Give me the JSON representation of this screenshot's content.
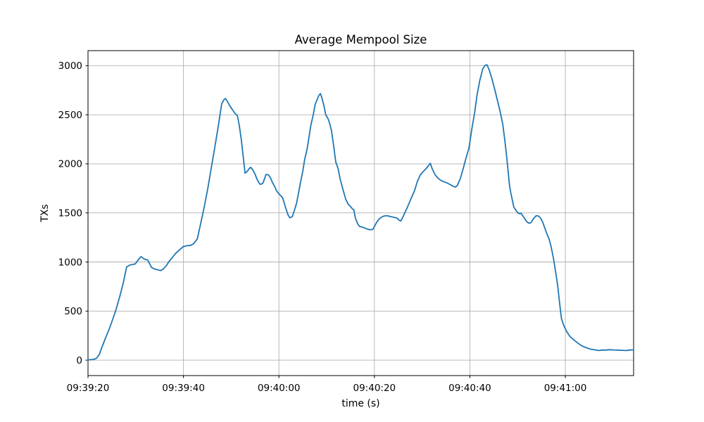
{
  "figure": {
    "background_color": "#ffffff",
    "text_color": "#000000",
    "grid_color": "#b0b0b0"
  },
  "chart_data": {
    "type": "line",
    "title": "Average Mempool Size",
    "xlabel": "time (s)",
    "ylabel": "TXs",
    "grid": true,
    "legend": "none",
    "x_axis": {
      "unit": "seconds after 09:39:20",
      "tick_positions_s": [
        0,
        20,
        40,
        60,
        80,
        100
      ],
      "tick_labels": [
        "09:39:20",
        "09:39:40",
        "09:40:00",
        "09:40:20",
        "09:40:40",
        "09:41:00"
      ]
    },
    "xlim_s": [
      0,
      114.3
    ],
    "ylim": [
      -157,
      3153
    ],
    "yticks": [
      0,
      500,
      1000,
      1500,
      2000,
      2500,
      3000
    ],
    "series": [
      {
        "name": "average mempool size",
        "color": "#1f77b4",
        "points_t_s_txs": [
          [
            0,
            3
          ],
          [
            1.2,
            8
          ],
          [
            1.8,
            20
          ],
          [
            2.4,
            60
          ],
          [
            2.9,
            130
          ],
          [
            3.7,
            230
          ],
          [
            4.4,
            310
          ],
          [
            5.2,
            420
          ],
          [
            5.9,
            520
          ],
          [
            6.6,
            640
          ],
          [
            7.4,
            790
          ],
          [
            8.1,
            950
          ],
          [
            8.8,
            970
          ],
          [
            9.9,
            980
          ],
          [
            10.5,
            1020
          ],
          [
            11.1,
            1055
          ],
          [
            11.8,
            1030
          ],
          [
            12.5,
            1020
          ],
          [
            13.3,
            945
          ],
          [
            14,
            928
          ],
          [
            14.7,
            920
          ],
          [
            15.2,
            912
          ],
          [
            15.8,
            930
          ],
          [
            16.4,
            962
          ],
          [
            17,
            1007
          ],
          [
            17.7,
            1048
          ],
          [
            18.4,
            1090
          ],
          [
            19.2,
            1125
          ],
          [
            19.9,
            1155
          ],
          [
            20.6,
            1165
          ],
          [
            21.5,
            1170
          ],
          [
            22.1,
            1185
          ],
          [
            22.9,
            1235
          ],
          [
            23.6,
            1390
          ],
          [
            24.3,
            1550
          ],
          [
            25.1,
            1750
          ],
          [
            25.8,
            1950
          ],
          [
            26.5,
            2150
          ],
          [
            27.3,
            2385
          ],
          [
            28,
            2610
          ],
          [
            28.5,
            2655
          ],
          [
            28.8,
            2665
          ],
          [
            29.2,
            2635
          ],
          [
            29.6,
            2600
          ],
          [
            30.2,
            2555
          ],
          [
            30.8,
            2515
          ],
          [
            31.3,
            2490
          ],
          [
            31.7,
            2390
          ],
          [
            32.1,
            2250
          ],
          [
            32.6,
            2040
          ],
          [
            32.9,
            1905
          ],
          [
            33.3,
            1920
          ],
          [
            33.8,
            1952
          ],
          [
            34.1,
            1965
          ],
          [
            34.5,
            1940
          ],
          [
            35,
            1895
          ],
          [
            35.4,
            1845
          ],
          [
            35.8,
            1808
          ],
          [
            36.1,
            1790
          ],
          [
            36.6,
            1800
          ],
          [
            37,
            1850
          ],
          [
            37.3,
            1892
          ],
          [
            37.8,
            1888
          ],
          [
            38.2,
            1860
          ],
          [
            38.6,
            1815
          ],
          [
            39.1,
            1770
          ],
          [
            39.5,
            1725
          ],
          [
            40,
            1695
          ],
          [
            40.4,
            1675
          ],
          [
            40.8,
            1652
          ],
          [
            41.3,
            1570
          ],
          [
            41.9,
            1480
          ],
          [
            42.3,
            1450
          ],
          [
            42.8,
            1462
          ],
          [
            43.2,
            1520
          ],
          [
            43.7,
            1600
          ],
          [
            44.1,
            1700
          ],
          [
            44.5,
            1805
          ],
          [
            45,
            1925
          ],
          [
            45.4,
            2045
          ],
          [
            45.9,
            2150
          ],
          [
            46.3,
            2270
          ],
          [
            46.7,
            2395
          ],
          [
            47.2,
            2500
          ],
          [
            47.6,
            2606
          ],
          [
            48.1,
            2665
          ],
          [
            48.4,
            2700
          ],
          [
            48.7,
            2715
          ],
          [
            49.1,
            2655
          ],
          [
            49.4,
            2595
          ],
          [
            49.8,
            2500
          ],
          [
            50.3,
            2458
          ],
          [
            50.6,
            2415
          ],
          [
            51,
            2340
          ],
          [
            51.5,
            2170
          ],
          [
            51.9,
            2020
          ],
          [
            52.4,
            1950
          ],
          [
            52.8,
            1850
          ],
          [
            53.4,
            1740
          ],
          [
            54,
            1640
          ],
          [
            54.5,
            1590
          ],
          [
            55,
            1565
          ],
          [
            55.4,
            1540
          ],
          [
            55.7,
            1530
          ],
          [
            56,
            1450
          ],
          [
            56.5,
            1390
          ],
          [
            56.9,
            1362
          ],
          [
            57.5,
            1355
          ],
          [
            58.1,
            1343
          ],
          [
            58.7,
            1332
          ],
          [
            59.3,
            1328
          ],
          [
            59.7,
            1335
          ],
          [
            60.2,
            1380
          ],
          [
            60.6,
            1415
          ],
          [
            61.2,
            1448
          ],
          [
            61.8,
            1465
          ],
          [
            62.4,
            1472
          ],
          [
            63,
            1468
          ],
          [
            63.6,
            1460
          ],
          [
            64.1,
            1455
          ],
          [
            64.7,
            1448
          ],
          [
            65.2,
            1425
          ],
          [
            65.5,
            1417
          ],
          [
            65.9,
            1450
          ],
          [
            66.4,
            1505
          ],
          [
            66.8,
            1545
          ],
          [
            67.2,
            1590
          ],
          [
            67.8,
            1660
          ],
          [
            68.4,
            1725
          ],
          [
            69,
            1820
          ],
          [
            69.6,
            1885
          ],
          [
            70.2,
            1920
          ],
          [
            70.8,
            1950
          ],
          [
            71.4,
            1985
          ],
          [
            71.7,
            2005
          ],
          [
            72.1,
            1950
          ],
          [
            72.7,
            1890
          ],
          [
            73.3,
            1855
          ],
          [
            73.9,
            1832
          ],
          [
            74.5,
            1818
          ],
          [
            75.2,
            1806
          ],
          [
            75.9,
            1788
          ],
          [
            76.5,
            1772
          ],
          [
            77,
            1763
          ],
          [
            77.4,
            1782
          ],
          [
            78,
            1850
          ],
          [
            78.6,
            1950
          ],
          [
            79.2,
            2060
          ],
          [
            79.8,
            2160
          ],
          [
            80.4,
            2350
          ],
          [
            81,
            2520
          ],
          [
            81.5,
            2700
          ],
          [
            82.1,
            2855
          ],
          [
            82.7,
            2965
          ],
          [
            83.2,
            3005
          ],
          [
            83.6,
            3008
          ],
          [
            84.1,
            2950
          ],
          [
            84.6,
            2870
          ],
          [
            85.2,
            2760
          ],
          [
            85.8,
            2640
          ],
          [
            86.4,
            2520
          ],
          [
            86.9,
            2400
          ],
          [
            87.3,
            2250
          ],
          [
            87.7,
            2080
          ],
          [
            88,
            1930
          ],
          [
            88.3,
            1780
          ],
          [
            88.6,
            1700
          ],
          [
            89.2,
            1560
          ],
          [
            89.8,
            1515
          ],
          [
            90.3,
            1492
          ],
          [
            90.7,
            1498
          ],
          [
            91.3,
            1455
          ],
          [
            91.9,
            1412
          ],
          [
            92.3,
            1396
          ],
          [
            92.8,
            1400
          ],
          [
            93.3,
            1440
          ],
          [
            93.9,
            1472
          ],
          [
            94.4,
            1468
          ],
          [
            94.8,
            1448
          ],
          [
            95.3,
            1400
          ],
          [
            95.7,
            1345
          ],
          [
            96.1,
            1292
          ],
          [
            96.6,
            1233
          ],
          [
            97,
            1160
          ],
          [
            97.5,
            1040
          ],
          [
            97.9,
            920
          ],
          [
            98.4,
            760
          ],
          [
            98.8,
            580
          ],
          [
            99.2,
            420
          ],
          [
            99.7,
            349
          ],
          [
            100.3,
            290
          ],
          [
            101,
            240
          ],
          [
            101.8,
            206
          ],
          [
            102.5,
            178
          ],
          [
            103.2,
            153
          ],
          [
            104,
            134
          ],
          [
            104.7,
            122
          ],
          [
            105.4,
            111
          ],
          [
            106.2,
            105
          ],
          [
            106.9,
            98
          ],
          [
            107.7,
            103
          ],
          [
            108.4,
            102
          ],
          [
            109.3,
            107
          ],
          [
            110.2,
            104
          ],
          [
            111,
            102
          ],
          [
            111.9,
            100
          ],
          [
            112.8,
            98
          ],
          [
            113.5,
            103
          ],
          [
            114.3,
            105
          ]
        ]
      }
    ]
  }
}
